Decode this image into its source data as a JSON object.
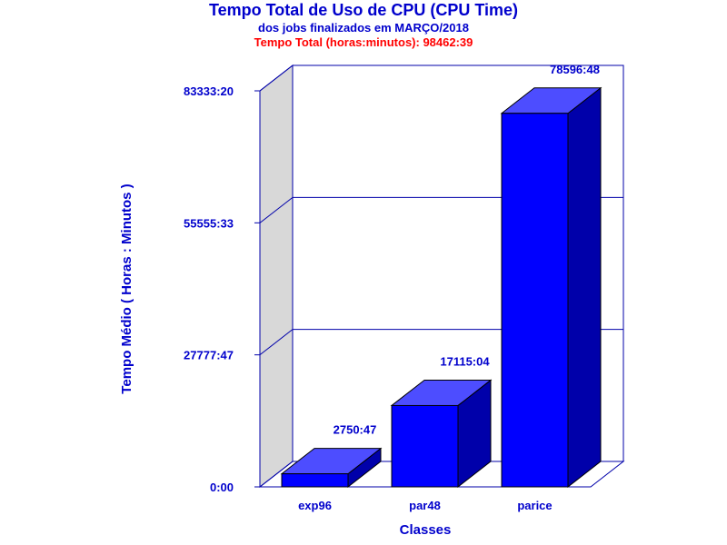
{
  "chart_data": {
    "type": "bar",
    "title": "Tempo Total de Uso de CPU (CPU Time)",
    "subtitle": "dos jobs finalizados em MARÇO/2018",
    "total_label": "Tempo Total (horas:minutos): 98462:39",
    "xlabel": "Classes",
    "ylabel": "Tempo Médio ( Horas : Minutos )",
    "categories": [
      "exp96",
      "par48",
      "parice"
    ],
    "values_minutes": [
      165047,
      1026904,
      4715808
    ],
    "value_labels": [
      "2750:47",
      "17115:04",
      "78596:48"
    ],
    "y_ticks_minutes": [
      0,
      1666667,
      3333333,
      5000000
    ],
    "y_tick_labels": [
      "0:00",
      "27777:47",
      "55555:33",
      "83333:20"
    ],
    "ylim_minutes": [
      0,
      5000000
    ],
    "grid": true,
    "legend": "none",
    "colors": {
      "bar_front": "#0000ff",
      "bar_top": "#4d4dff",
      "bar_side": "#0000aa",
      "text": "#0000cc",
      "total_text": "#ff0000",
      "axes": "#0000aa",
      "back_wall": "#d8d8d8"
    }
  }
}
